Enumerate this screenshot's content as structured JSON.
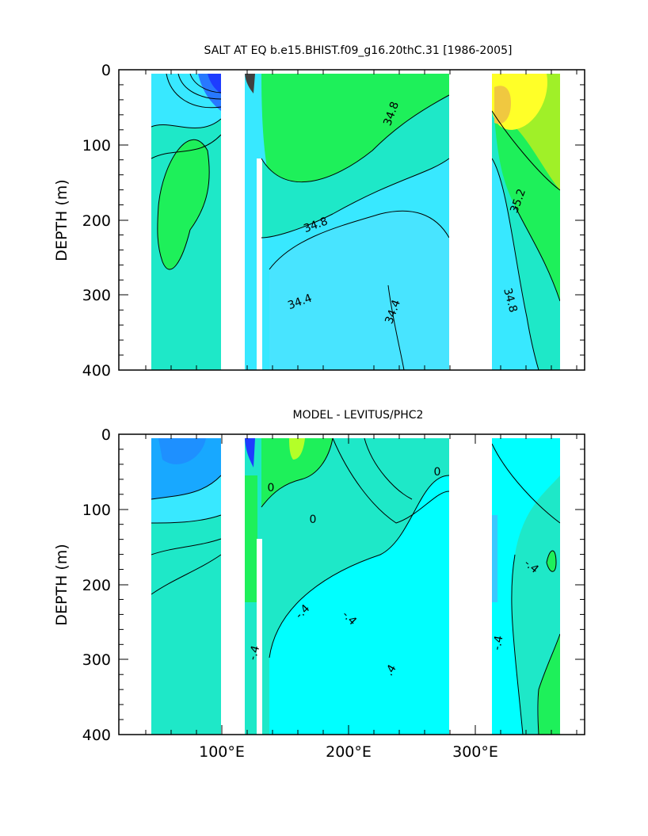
{
  "chart_data": [
    {
      "type": "heatmap",
      "title": "SALT AT EQ b.e15.BHIST.f09_g16.20thC.31 [1986-2005]",
      "xlabel": "",
      "ylabel": "DEPTH (m)",
      "xlim": [
        28,
        388
      ],
      "ylim": [
        400,
        0
      ],
      "y_ticks": [
        "0",
        "100",
        "200",
        "300",
        "400"
      ],
      "x_ticks": [],
      "land_gaps_lon": [
        [
          97,
          118
        ],
        [
          277,
          314
        ],
        [
          367,
          388
        ]
      ],
      "contour_labels": [
        "34.8",
        "34.8",
        "34.4",
        "34.4",
        "35.2",
        "34.8"
      ],
      "colors": {
        "low": "#1e3cff",
        "cyan": "#38e8ff",
        "mid": "#1ee8c8",
        "green": "#1ef05a",
        "yellow": "#ffff28",
        "orange": "#f0c840"
      }
    },
    {
      "type": "heatmap",
      "title": "MODEL - LEVITUS/PHC2",
      "xlabel": "",
      "ylabel": "DEPTH (m)",
      "xlim": [
        28,
        388
      ],
      "ylim": [
        400,
        0
      ],
      "y_ticks": [
        "0",
        "100",
        "200",
        "300",
        "400"
      ],
      "x_ticks": [
        "100°E",
        "200°E",
        "300°E"
      ],
      "land_gaps_lon": [
        [
          97,
          118
        ],
        [
          277,
          314
        ],
        [
          367,
          388
        ]
      ],
      "contour_labels": [
        "0",
        "0",
        "-.4",
        "-.4",
        "-.4",
        "-.4",
        "-.4",
        ".4",
        "0"
      ],
      "colors": {
        "neg": "#18a8ff",
        "cyan": "#00ffff",
        "mid": "#1ee8c8",
        "green": "#1ef05a",
        "yellow": "#b4ff28"
      }
    }
  ]
}
